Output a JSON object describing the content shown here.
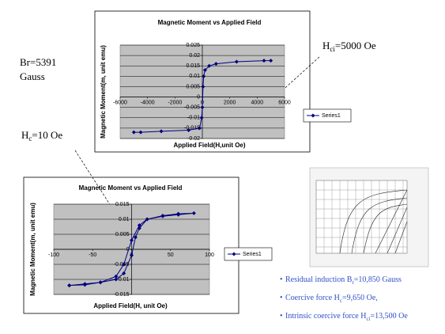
{
  "chart_data": [
    {
      "type": "scatter-line",
      "title": "Magnetic Moment vs Applied Field",
      "x_label": "Applied Field(H,unit Oe)",
      "y_label": "Magnetic Moment(m, unit emu)",
      "xlim": [
        -6000,
        6000
      ],
      "xticks": [
        -6000,
        -4000,
        -2000,
        0,
        2000,
        4000,
        6000
      ],
      "ylim": [
        -0.02,
        0.025
      ],
      "yticks": [
        -0.02,
        -0.015,
        -0.01,
        -0.005,
        0,
        0.005,
        0.01,
        0.015,
        0.02,
        0.025
      ],
      "grid": true,
      "legend": "right",
      "series": [
        {
          "name": "Series1",
          "color": "#000080",
          "x": [
            -5000,
            -4500,
            -3000,
            -1000,
            -200,
            -50,
            0,
            50,
            100,
            200,
            500,
            1000,
            2500,
            4500,
            5000
          ],
          "values": [
            -0.017,
            -0.017,
            -0.0165,
            -0.016,
            -0.015,
            -0.01,
            -0.005,
            0.005,
            0.01,
            0.013,
            0.015,
            0.016,
            0.017,
            0.0175,
            0.0175
          ]
        }
      ]
    },
    {
      "type": "scatter-line",
      "title": "Magnetic Moment vs Applied Field",
      "x_label": "Applied Field(H, unit Oe)",
      "y_label": "Magnetic Moment(m, unit emu)",
      "xlim": [
        -100,
        100
      ],
      "xticks": [
        -100,
        -50,
        0,
        50,
        100
      ],
      "ylim": [
        -0.015,
        0.015
      ],
      "yticks": [
        -0.015,
        -0.01,
        -0.005,
        0,
        0.005,
        0.01,
        0.015
      ],
      "grid": true,
      "legend": "right",
      "series": [
        {
          "name": "Series1",
          "color": "#000080",
          "x": [
            -80,
            -60,
            -40,
            -20,
            -10,
            0,
            10,
            20,
            40,
            60,
            80,
            60,
            40,
            20,
            10,
            5,
            0,
            -10,
            -20,
            -40,
            -60,
            -80
          ],
          "values": [
            -0.012,
            -0.0118,
            -0.011,
            -0.009,
            -0.005,
            0.003,
            0.008,
            0.01,
            0.0112,
            0.0118,
            0.012,
            0.0115,
            0.011,
            0.01,
            0.007,
            0.004,
            -0.002,
            -0.008,
            -0.01,
            -0.011,
            -0.0115,
            -0.012
          ]
        }
      ]
    }
  ],
  "annotations": {
    "br": [
      "Br=5391",
      "Gauss"
    ],
    "hc": {
      "main": "H",
      "sub": "c",
      "rest": "=10 Oe"
    },
    "hci": {
      "main": "H",
      "sub": "ci",
      "rest": "=5000 Oe"
    }
  },
  "bullets": [
    {
      "main": "Residual induction B",
      "sub": "r",
      "rest": "=10,850 Gauss"
    },
    {
      "main": "Coercive force H",
      "sub": "c",
      "rest": "=9,650 Oe,"
    },
    {
      "main": "Intrinsic coercive force H",
      "sub": "ci",
      "rest": "=13,500 Oe"
    }
  ]
}
